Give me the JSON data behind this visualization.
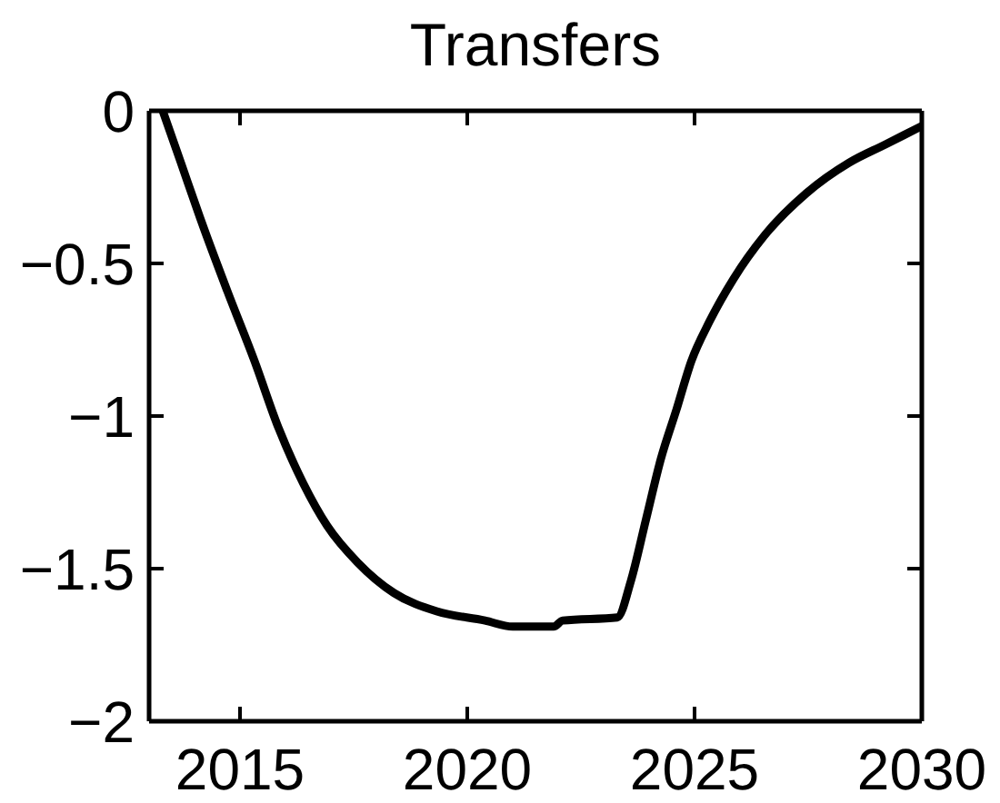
{
  "chart_data": {
    "type": "line",
    "title": "Transfers",
    "x": [
      2013.3,
      2013.7,
      2014.12,
      2014.72,
      2015.32,
      2015.85,
      2016.39,
      2016.92,
      2017.59,
      2018.39,
      2019.33,
      2020.39,
      2021.0,
      2021.9,
      2022.1,
      2023.3,
      2023.6,
      2023.93,
      2024.26,
      2024.6,
      2024.93,
      2025.33,
      2025.86,
      2026.53,
      2027.46,
      2028.4,
      2029.2,
      2030
    ],
    "series": [
      {
        "color": "#000000",
        "values": [
          0,
          -0.17,
          -0.35,
          -0.59,
          -0.82,
          -1.04,
          -1.22,
          -1.36,
          -1.48,
          -1.58,
          -1.64,
          -1.67,
          -1.69,
          -1.69,
          -1.67,
          -1.66,
          -1.54,
          -1.34,
          -1.14,
          -0.98,
          -0.82,
          -0.69,
          -0.55,
          -0.41,
          -0.27,
          -0.17,
          -0.11,
          -0.05
        ]
      }
    ],
    "xlim": [
      2013,
      2030
    ],
    "xticks": [
      2015,
      2020,
      2025,
      2030
    ],
    "ylim": [
      -2,
      0
    ],
    "yticks": [
      -2,
      -1.5,
      -1,
      -0.5,
      0
    ],
    "grid": false,
    "legend": false,
    "marker": "none",
    "line_style": "solid"
  }
}
